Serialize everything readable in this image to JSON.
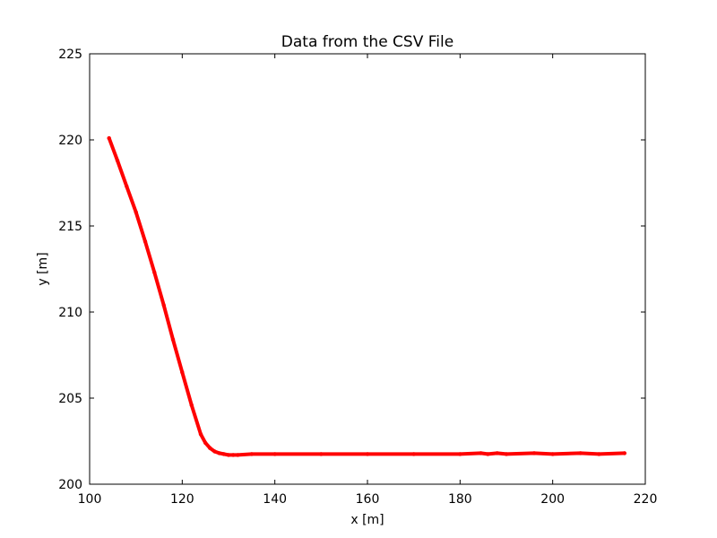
{
  "chart_data": {
    "type": "line",
    "title": "Data from the CSV File",
    "xlabel": "x [m]",
    "ylabel": "y [m]",
    "xlim": [
      100,
      220
    ],
    "ylim": [
      200,
      225
    ],
    "xticks": [
      "100",
      "120",
      "140",
      "160",
      "180",
      "200",
      "220"
    ],
    "yticks": [
      "200",
      "205",
      "210",
      "215",
      "220",
      "225"
    ],
    "grid": false,
    "legend": "none",
    "series": [
      {
        "color": "#ff0000",
        "marker": "dot",
        "x": [
          104.2,
          106,
          108,
          110,
          112,
          114,
          116,
          118,
          120,
          122,
          124,
          125,
          126,
          127,
          128,
          129,
          130,
          131,
          132,
          135,
          140,
          150,
          160,
          170,
          180,
          184.5,
          186,
          188,
          190,
          196,
          200,
          206,
          210,
          215.5
        ],
        "y": [
          220.1,
          218.8,
          217.3,
          215.8,
          214.1,
          212.3,
          210.4,
          208.4,
          206.5,
          204.6,
          202.9,
          202.4,
          202.1,
          201.9,
          201.8,
          201.75,
          201.7,
          201.7,
          201.7,
          201.75,
          201.75,
          201.75,
          201.75,
          201.75,
          201.75,
          201.8,
          201.75,
          201.8,
          201.75,
          201.8,
          201.75,
          201.8,
          201.75,
          201.8
        ]
      }
    ]
  }
}
